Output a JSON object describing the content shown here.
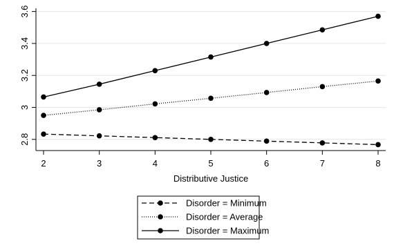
{
  "chart_data": {
    "type": "line",
    "title": "",
    "xlabel": "Distributive Justice",
    "ylabel": "",
    "x": [
      2,
      3,
      4,
      5,
      6,
      7,
      8
    ],
    "xlim": [
      2,
      8
    ],
    "ylim": [
      2.73,
      3.62
    ],
    "xticks": [
      "2",
      "3",
      "4",
      "5",
      "6",
      "7",
      "8"
    ],
    "yticks": [
      "2.8",
      "3",
      "3.2",
      "3.4",
      "3.6"
    ],
    "grid": "horizontal",
    "legend_position": "bottom",
    "series": [
      {
        "name": "Disorder = Minimum",
        "style": "dashed",
        "color": "#000000",
        "values": [
          2.833,
          2.822,
          2.811,
          2.8,
          2.789,
          2.778,
          2.767
        ]
      },
      {
        "name": "Disorder = Average",
        "style": "dotted",
        "color": "#000000",
        "values": [
          2.95,
          2.985,
          3.022,
          3.057,
          3.093,
          3.13,
          3.165
        ]
      },
      {
        "name": "Disorder = Maximum",
        "style": "solid",
        "color": "#000000",
        "values": [
          3.065,
          3.145,
          3.23,
          3.315,
          3.4,
          3.485,
          3.57
        ]
      }
    ]
  }
}
